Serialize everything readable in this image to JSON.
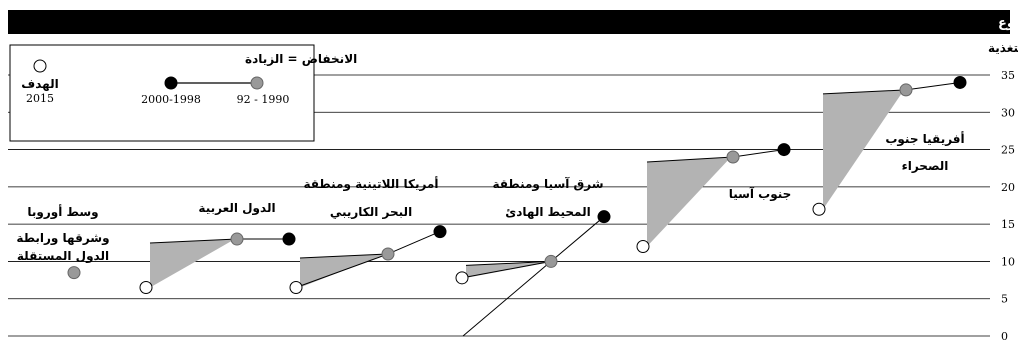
{
  "header": {
    "title": "الجــوع"
  },
  "chart_data": {
    "type": "line",
    "subtitle": "النسبة المئوية للسكان الذين يعانون سوء التغذية",
    "ylim": [
      0,
      35
    ],
    "yticks": [
      0,
      5,
      10,
      15,
      20,
      25,
      30,
      35
    ],
    "grid": true,
    "legend": {
      "position": "top-left",
      "reduction_label": "الانخفاض = الزيادة",
      "period1_label": "92 - 1990",
      "period2_label": "2000-1998",
      "target_label": "الهدف",
      "target_year": "2015",
      "period1_color": "#999999",
      "period2_color": "#000000",
      "target_color": "#ffffff"
    },
    "regions": [
      {
        "label_lines": [
          "وسط أوروبا",
          "وشرقها ورابطة",
          "الدول المستقلة"
        ],
        "v1990": null,
        "v1998": 8.5,
        "target": null
      },
      {
        "label_lines": [
          "الدول العربية"
        ],
        "v1990": 13,
        "v1998": 13,
        "target": 6.5
      },
      {
        "label_lines": [
          "أمريكا اللاتينية ومنطقة",
          "البحر الكاريبي"
        ],
        "v1990": 11,
        "v1998": 14,
        "target": 6.5
      },
      {
        "label_lines": [
          "شرق آسيا ومنطقة",
          "المحيط الهادئ"
        ],
        "v1990": 10,
        "v1998": 16,
        "target": 7.8
      },
      {
        "label_lines": [
          "جنوب آسيا"
        ],
        "v1990": 24,
        "v1998": 25,
        "target": 12
      },
      {
        "label_lines": [
          "أفريقيا جنوب",
          "الصحراء"
        ],
        "v1990": 33,
        "v1998": 34,
        "target": 17
      }
    ]
  }
}
